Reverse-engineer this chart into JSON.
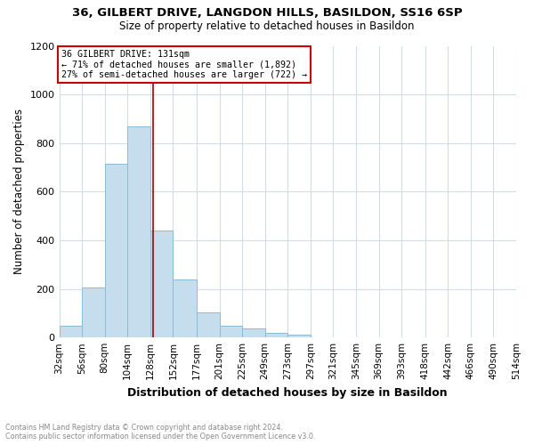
{
  "title": "36, GILBERT DRIVE, LANGDON HILLS, BASILDON, SS16 6SP",
  "subtitle": "Size of property relative to detached houses in Basildon",
  "bar_color": "#c5dded",
  "bar_edge_color": "#8bbbd6",
  "annotation_box_title": "36 GILBERT DRIVE: 131sqm",
  "annotation_line1": "← 71% of detached houses are smaller (1,892)",
  "annotation_line2": "27% of semi-detached houses are larger (722) →",
  "vline_x": 131,
  "vline_color": "#aa0000",
  "xlabel": "Distribution of detached houses by size in Basildon",
  "ylabel": "Number of detached properties",
  "footer1": "Contains HM Land Registry data © Crown copyright and database right 2024.",
  "footer2": "Contains public sector information licensed under the Open Government Licence v3.0.",
  "ylim": [
    0,
    1200
  ],
  "yticks": [
    0,
    200,
    400,
    600,
    800,
    1000,
    1200
  ],
  "bin_edges": [
    32,
    56,
    80,
    104,
    128,
    152,
    177,
    201,
    225,
    249,
    273,
    297,
    321,
    345,
    369,
    393,
    418,
    442,
    466,
    490,
    514
  ],
  "bin_counts": [
    50,
    207,
    714,
    869,
    440,
    237,
    104,
    48,
    37,
    18,
    10,
    0,
    0,
    0,
    0,
    0,
    0,
    0,
    0,
    0
  ],
  "grid_color": "#d0dde8",
  "background_color": "#ffffff",
  "box_face_color": "#ffffff",
  "box_edge_color": "#cc0000",
  "title_fontsize": 9.5,
  "subtitle_fontsize": 8.5
}
